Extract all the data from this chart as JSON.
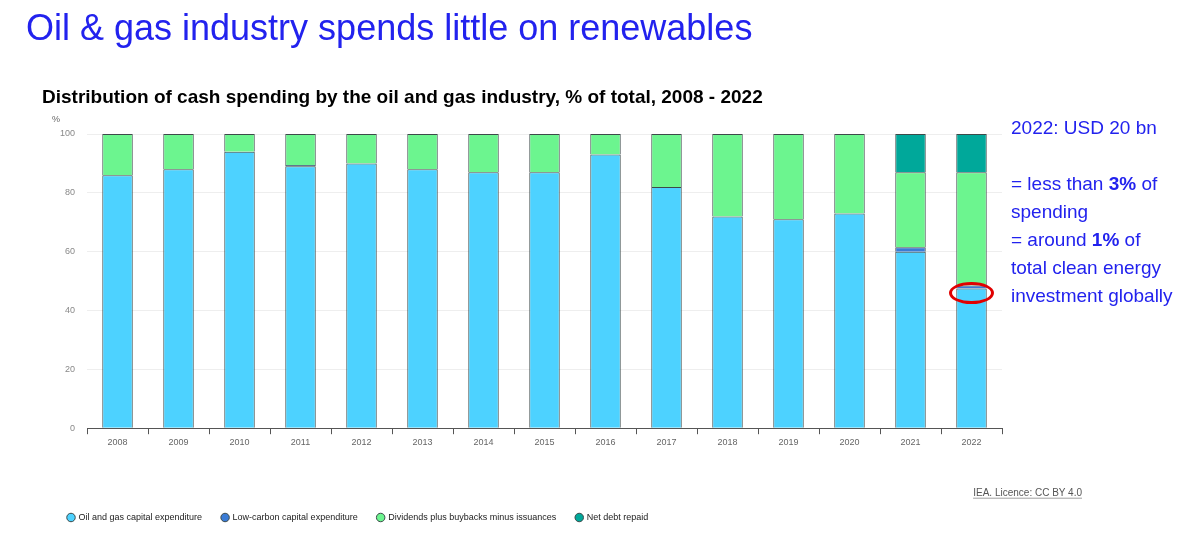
{
  "chart_data": {
    "type": "bar",
    "title": "Oil & gas industry spends little on renewables",
    "subtitle": "Distribution of cash spending by the oil and gas industry, % of total, 2008 - 2022",
    "ylabel": "%",
    "categories": [
      "2008",
      "2009",
      "2010",
      "2011",
      "2012",
      "2013",
      "2014",
      "2015",
      "2016",
      "2017",
      "2018",
      "2019",
      "2020",
      "2021",
      "2022"
    ],
    "series": [
      {
        "name": "Oil and gas capital expenditure",
        "color": "#4dd2ff",
        "values": [
          86,
          88,
          94,
          89,
          90,
          88,
          87,
          87,
          93,
          82,
          72,
          71,
          73,
          60,
          47.5
        ]
      },
      {
        "name": "Low-carbon capital expenditure",
        "color": "#3a7bd5",
        "values": [
          0,
          0,
          0,
          0.5,
          0,
          0,
          0,
          0,
          0,
          0,
          0,
          0,
          0,
          1.5,
          1
        ]
      },
      {
        "name": "Dividends plus buybacks minus issuances",
        "color": "#6cf58f",
        "values": [
          14,
          12,
          6,
          10.5,
          10,
          12,
          13,
          13,
          7,
          18,
          28,
          29,
          27,
          25.5,
          38.5
        ]
      },
      {
        "name": "Net debt repaid",
        "color": "#00a89a",
        "values": [
          0,
          0,
          0,
          0,
          0,
          0,
          0,
          0,
          0,
          0,
          0,
          0,
          0,
          13,
          13
        ]
      }
    ],
    "stacked": true,
    "ylim": [
      0,
      100
    ],
    "yticks": [
      0,
      20,
      40,
      60,
      80,
      100
    ],
    "grid": "y",
    "legend": "bottom",
    "annotations": [
      "2022: USD 20 bn",
      "= less than 3% of spending",
      "= around 1% of total clean energy investment globally",
      "IEA. Licence: CC BY 4.0"
    ]
  }
}
